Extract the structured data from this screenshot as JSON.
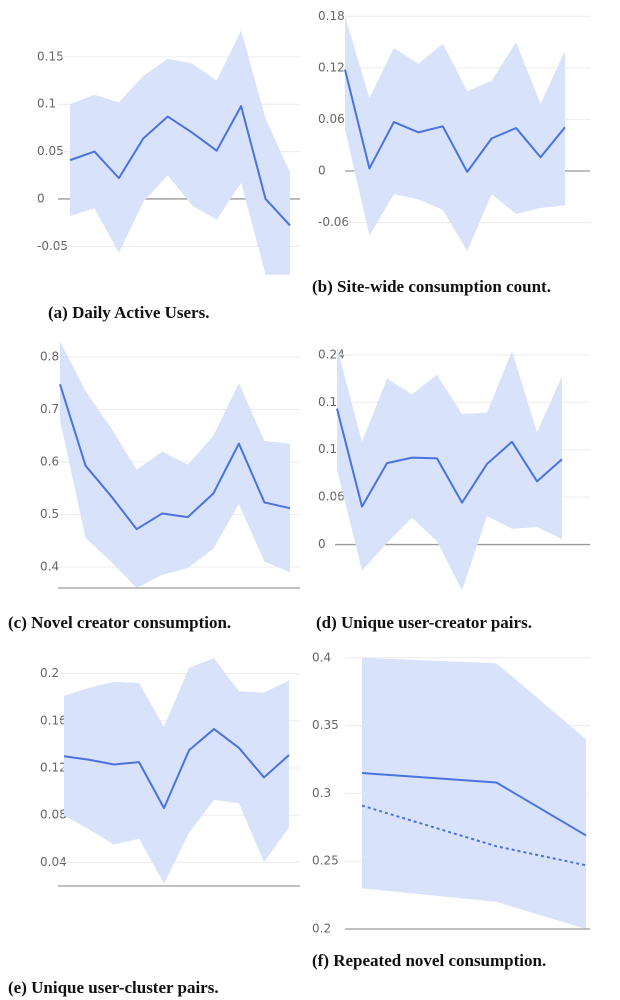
{
  "chart_data": [
    {
      "type": "line",
      "caption": "(a) Daily Active Users.",
      "categories": [
        null,
        null,
        null,
        null,
        null,
        null,
        null,
        null,
        null,
        null
      ],
      "ylim": [
        -0.075,
        0.19
      ],
      "yticks": [
        0.15,
        0.1,
        0.05,
        0,
        -0.05
      ],
      "grid": true,
      "zero_line": true,
      "band": {
        "color": "#d8e2fa",
        "upper": [
          0.1,
          0.11,
          0.102,
          0.13,
          0.148,
          0.143,
          0.125,
          0.178,
          0.085,
          0.028
        ],
        "lower": [
          -0.018,
          -0.01,
          -0.057,
          -0.003,
          0.025,
          -0.007,
          -0.022,
          0.017,
          -0.08,
          -0.08
        ]
      },
      "series": [
        {
          "color": "#4a73e0",
          "style": "solid",
          "values": [
            0.041,
            0.05,
            0.022,
            0.064,
            0.087,
            0.07,
            0.051,
            0.098,
            0,
            -0.028
          ]
        }
      ]
    },
    {
      "type": "line",
      "caption": "(b) Site-wide consumption count.",
      "categories": [
        null,
        null,
        null,
        null,
        null,
        null,
        null,
        null,
        null,
        null
      ],
      "ylim": [
        -0.1,
        0.185
      ],
      "yticks": [
        0.18,
        0.12,
        0.06,
        0,
        -0.06
      ],
      "grid": true,
      "zero_line": true,
      "band": {
        "color": "#d8e2fa",
        "upper": [
          0.18,
          0.085,
          0.143,
          0.125,
          0.148,
          0.093,
          0.105,
          0.15,
          0.078,
          0.14
        ],
        "lower": [
          0.048,
          -0.075,
          -0.027,
          -0.033,
          -0.045,
          -0.093,
          -0.027,
          -0.05,
          -0.043,
          -0.04
        ]
      },
      "series": [
        {
          "color": "#4a73e0",
          "style": "solid",
          "values": [
            0.118,
            0.003,
            0.057,
            0.045,
            0.052,
            -0.001,
            0.038,
            0.05,
            0.016,
            0.051
          ]
        }
      ]
    },
    {
      "type": "line",
      "caption": "(c) Novel creator consumption.",
      "categories": [
        null,
        null,
        null,
        null,
        null,
        null,
        null,
        null,
        null,
        null
      ],
      "ylim": [
        0.36,
        0.84
      ],
      "yticks": [
        0.8,
        0.7,
        0.6,
        0.5,
        0.4
      ],
      "grid": true,
      "zero_line": false,
      "band": {
        "color": "#d8e2fa",
        "upper": [
          0.83,
          0.735,
          0.665,
          0.585,
          0.62,
          0.595,
          0.65,
          0.75,
          0.64,
          0.635
        ],
        "lower": [
          0.68,
          0.455,
          0.41,
          0.36,
          0.385,
          0.398,
          0.435,
          0.52,
          0.41,
          0.39
        ]
      },
      "series": [
        {
          "color": "#4a73e0",
          "style": "solid",
          "values": [
            0.748,
            0.593,
            0.535,
            0.472,
            0.502,
            0.495,
            0.54,
            0.635,
            0.523,
            0.512
          ]
        }
      ]
    },
    {
      "type": "line",
      "caption": "(d) Unique user-creator pairs.",
      "categories": [
        null,
        null,
        null,
        null,
        null,
        null,
        null,
        null,
        null,
        null
      ],
      "ylim": [
        -0.06,
        0.255
      ],
      "yticks": [
        0.24,
        0.18,
        0.12,
        0.06,
        0
      ],
      "grid": true,
      "zero_line": true,
      "band": {
        "color": "#d8e2fa",
        "upper": [
          0.25,
          0.13,
          0.21,
          0.19,
          0.215,
          0.165,
          0.167,
          0.245,
          0.142,
          0.213
        ],
        "lower": [
          0.095,
          -0.033,
          0.002,
          0.034,
          0.004,
          -0.058,
          0.036,
          0.02,
          0.022,
          0.007
        ]
      },
      "series": [
        {
          "color": "#4a73e0",
          "style": "solid",
          "values": [
            0.172,
            0.048,
            0.103,
            0.11,
            0.109,
            0.053,
            0.102,
            0.13,
            0.08,
            0.108
          ]
        }
      ]
    },
    {
      "type": "line",
      "caption": "(e) Unique user-cluster pairs.",
      "categories": [
        null,
        null,
        null,
        null,
        null,
        null,
        null,
        null,
        null,
        null
      ],
      "ylim": [
        0.02,
        0.22
      ],
      "yticks": [
        0.2,
        0.16,
        0.12,
        0.08,
        0.04
      ],
      "grid": true,
      "zero_line": false,
      "band": {
        "color": "#d8e2fa",
        "upper": [
          0.181,
          0.188,
          0.193,
          0.192,
          0.155,
          0.205,
          0.213,
          0.185,
          0.184,
          0.194
        ],
        "lower": [
          0.08,
          0.068,
          0.055,
          0.06,
          0.022,
          0.065,
          0.093,
          0.09,
          0.04,
          0.07
        ]
      },
      "series": [
        {
          "color": "#4a73e0",
          "style": "solid",
          "values": [
            0.13,
            0.127,
            0.123,
            0.125,
            0.086,
            0.135,
            0.153,
            0.137,
            0.112,
            0.131
          ]
        }
      ]
    },
    {
      "type": "line",
      "caption": "(f) Repeated novel consumption.",
      "x": [
        0,
        6,
        10
      ],
      "xlim": [
        0,
        10
      ],
      "ylim": [
        0.2,
        0.405
      ],
      "yticks": [
        0.4,
        0.35,
        0.3,
        0.25,
        0.2
      ],
      "grid": true,
      "zero_line": false,
      "band": {
        "color": "#d8e2fa",
        "upper": [
          0.4,
          0.396,
          0.34
        ],
        "lower": [
          0.23,
          0.22,
          0.2
        ]
      },
      "series": [
        {
          "color": "#4a73e0",
          "style": "solid",
          "values": [
            0.315,
            0.308,
            0.269
          ]
        },
        {
          "color": "#4a73e0",
          "style": "dashed",
          "values": [
            0.291,
            0.261,
            0.247
          ]
        }
      ]
    }
  ]
}
